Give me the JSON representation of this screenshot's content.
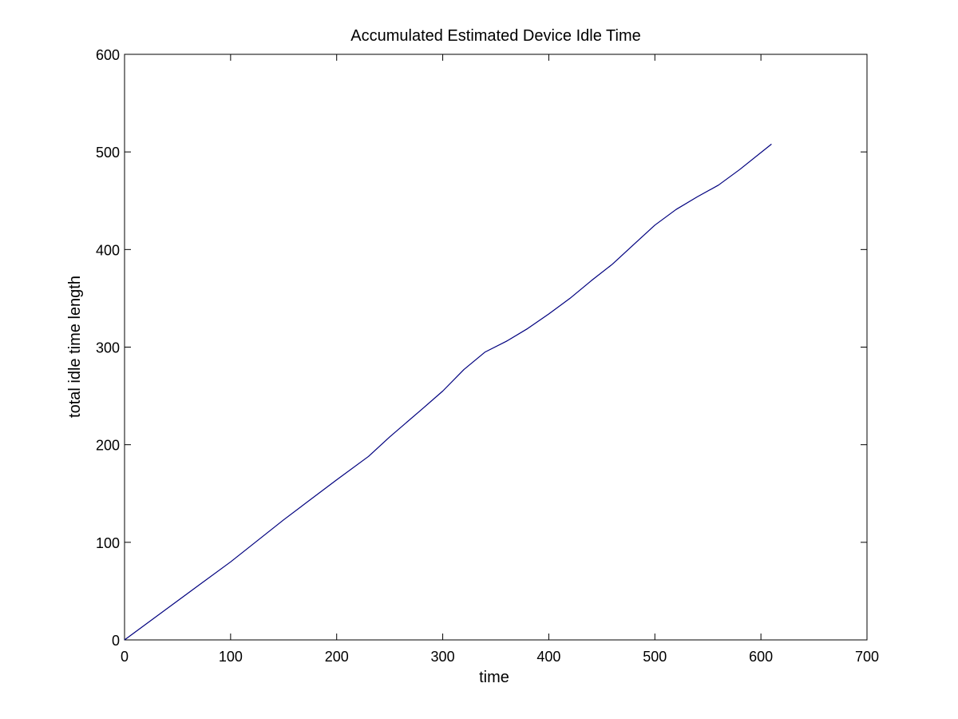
{
  "chart_data": {
    "type": "line",
    "title": "Accumulated Estimated Device Idle Time",
    "xlabel": "time",
    "ylabel": "total idle time length",
    "xlim": [
      0,
      700
    ],
    "ylim": [
      0,
      600
    ],
    "xticks": [
      0,
      100,
      200,
      300,
      400,
      500,
      600,
      700
    ],
    "yticks": [
      0,
      100,
      200,
      300,
      400,
      500,
      600
    ],
    "grid": false,
    "legend": "none",
    "series": [
      {
        "color": "#00007f",
        "x": [
          0,
          50,
          100,
          150,
          200,
          230,
          250,
          280,
          300,
          320,
          340,
          360,
          380,
          400,
          420,
          440,
          460,
          480,
          500,
          520,
          540,
          560,
          580,
          610
        ],
        "y": [
          0,
          40,
          80,
          123,
          164,
          188,
          208,
          236,
          255,
          277,
          295,
          306,
          319,
          334,
          350,
          368,
          385,
          405,
          425,
          441,
          454,
          466,
          482,
          508
        ]
      }
    ]
  }
}
